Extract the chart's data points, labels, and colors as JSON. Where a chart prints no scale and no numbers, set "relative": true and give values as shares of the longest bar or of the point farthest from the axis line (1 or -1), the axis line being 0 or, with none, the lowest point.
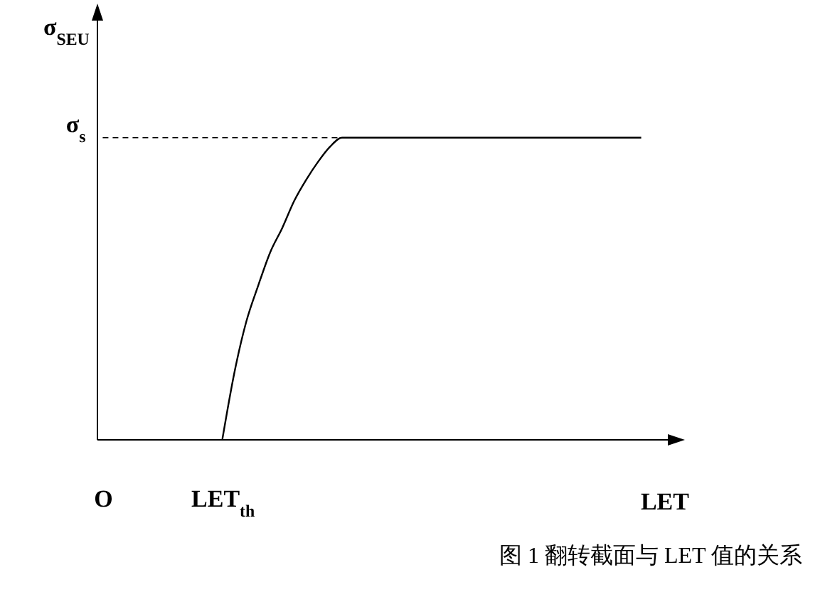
{
  "chart_data": {
    "type": "line",
    "title": "图 1 翻转截面与 LET 值的关系",
    "xlabel": "LET",
    "ylabel": "σ$_{SEU}$",
    "relative": true,
    "color": "#000000",
    "categories": [
      "O",
      null,
      null,
      null,
      null,
      null,
      null,
      null,
      null,
      null,
      "LET$_{th}$",
      null,
      null,
      null,
      null,
      null,
      null,
      null,
      null,
      null,
      null,
      null,
      null,
      null,
      null,
      null,
      null,
      null,
      null,
      null,
      null,
      null,
      null,
      null,
      null,
      null,
      null,
      null,
      null,
      null,
      null,
      null,
      null,
      null,
      null,
      null
    ],
    "values": [
      null,
      null,
      null,
      null,
      null,
      null,
      null,
      null,
      null,
      null,
      0,
      0.22,
      0.39,
      0.51,
      0.62,
      0.7,
      0.79,
      0.86,
      0.92,
      0.97,
      1,
      1,
      1,
      1,
      1,
      1,
      1,
      1,
      1,
      1,
      1,
      1,
      1,
      1,
      1,
      1,
      1,
      1,
      1,
      1,
      1,
      1,
      1,
      1,
      1,
      1
    ],
    "ref_lines": [
      {
        "axis": "y",
        "value": 1,
        "label": "σ$_{s}$",
        "line_style": "dashed"
      }
    ]
  }
}
